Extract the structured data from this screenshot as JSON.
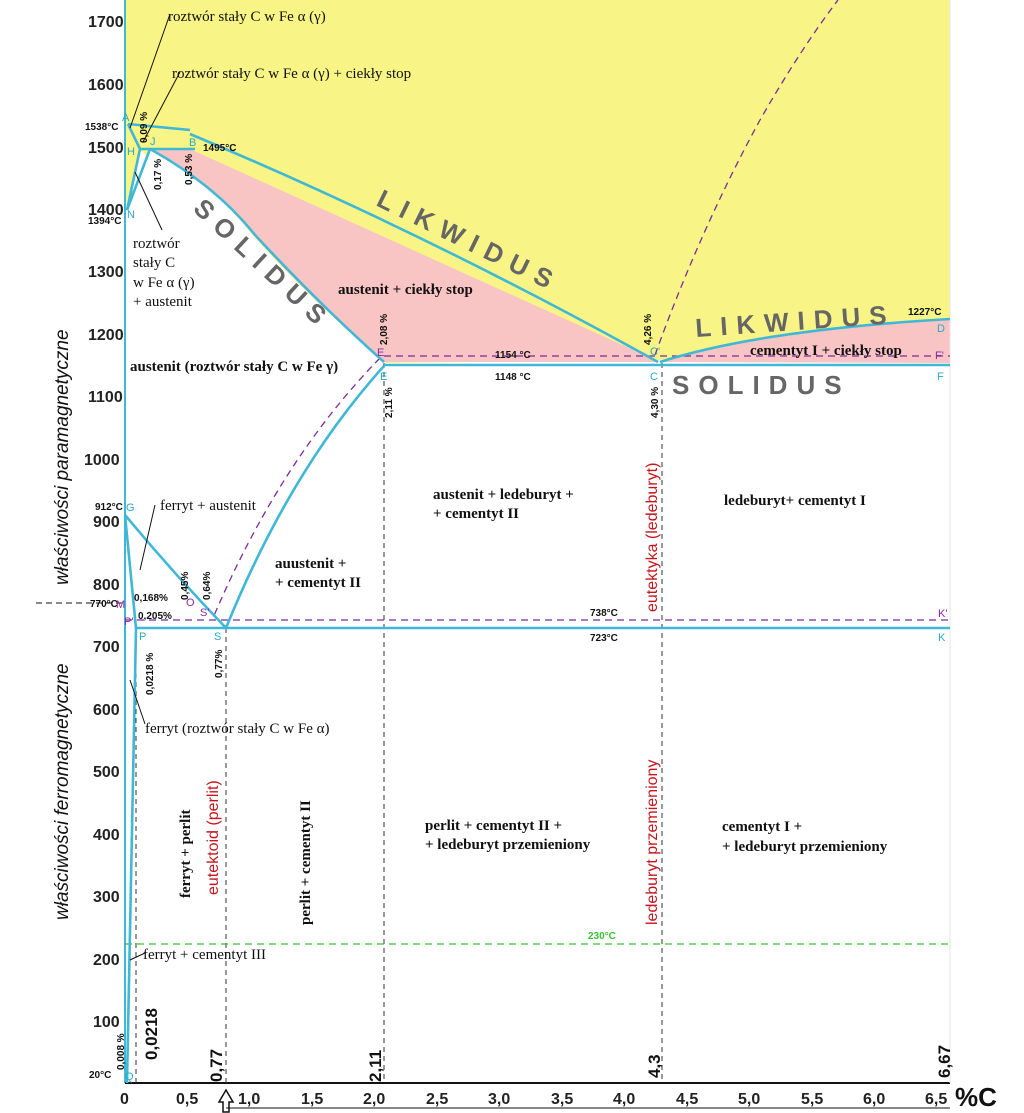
{
  "y_axis": {
    "ticks": [
      "1700",
      "1600",
      "1500",
      "1400",
      "1300",
      "1200",
      "1100",
      "1000",
      "900",
      "800",
      "700",
      "600",
      "500",
      "400",
      "300",
      "200",
      "100",
      "0"
    ],
    "label_para": "właściwości paramagnetyczne",
    "label_ferro": "właściwości ferromagnetyczne",
    "curie": "770°C"
  },
  "x_axis": {
    "ticks": [
      "0",
      "0,5",
      "1,0",
      "1,5",
      "2,0",
      "2,5",
      "3,0",
      "3,5",
      "4,0",
      "4,5",
      "5,0",
      "5,5",
      "6,0",
      "6,5"
    ],
    "unit": "%C",
    "key_values": [
      "0,0218",
      "0,77",
      "2,11",
      "4,3",
      "6,67"
    ]
  },
  "points": {
    "A": "A",
    "H": "H",
    "J": "J",
    "B": "B",
    "N": "N",
    "E": "E",
    "C": "C",
    "C_prime": "C'",
    "D": "D",
    "F": "F",
    "F_prime": "F'",
    "G": "G",
    "M": "M",
    "O": "O",
    "P": "P",
    "P_prime": "P'",
    "S": "S",
    "S_prime": "S'",
    "K": "K",
    "K_prime": "K'",
    "Q": "Q"
  },
  "temperatures": {
    "t1538": "1538°C",
    "t1495": "1495°C",
    "t1394": "1394°C",
    "t1227": "1227°C",
    "t1154": "1154 °C",
    "t1148": "1148 °C",
    "t912": "912°C",
    "t738": "738°C",
    "t723": "723°C",
    "t230": "230°C",
    "t20": "20°C"
  },
  "percents": {
    "p009": "0,09 %",
    "p017": "0,17 %",
    "p053": "0,53 %",
    "p208": "2,08 %",
    "p211": "2,11 %",
    "p426": "4,26 %",
    "p430": "4,30 %",
    "p045": "0,45%",
    "p064": "0,64%",
    "p0168": "0,168%",
    "p0205": "0,205%",
    "p00218": "0,0218 %",
    "p077": "0,77%",
    "p0008": "0,008 %"
  },
  "curve_labels": {
    "liquidus": "LIKWIDUS",
    "solidus": "SOLIDUS"
  },
  "regions": {
    "alpha_gamma": "roztwór stały C w Fe α (γ)",
    "alpha_gamma_liquid": "roztwór stały C w Fe α (γ) + ciekły stop",
    "rs_1": "roztwór",
    "rs_2": "stały C",
    "rs_3": "w Fe α (γ)",
    "rs_4": "+ austenit",
    "austenite_liquid": "austenit + ciekły stop",
    "austenite": "austenit (roztwór stały C w Fe γ)",
    "cementite_liquid": "cementyt I + ciekły stop",
    "aus_led_1": "austenit + ledeburyt +",
    "aus_led_2": "+ cementyt II",
    "led_cem": "ledeburyt+ cementyt I",
    "ferrite_austenite": "ferryt + austenit",
    "aus_cem_1": "auustenit +",
    "aus_cem_2": "+ cementyt II",
    "ferrite": "ferryt (roztwór stały C w Fe α)",
    "ferrite_perlite": "ferryt + perlit",
    "perlite_cem": "perlit + cementyt II",
    "perl_led_1": "perlit + cementyt II +",
    "perl_led_2": "+ ledeburyt przemieniony",
    "cem_led_1": "cementyt I +",
    "cem_led_2": "+ ledeburyt przemieniony",
    "ferrite_cem3": "ferryt + cementyt III",
    "eutektoid": "eutektoid (perlit)",
    "eutektyka": "eutektyka (ledeburyt)",
    "led_transformed": "ledeburyt  przemieniony"
  },
  "colors": {
    "liquid": "#f8f586",
    "two_phase": "#f9c4c4",
    "line": "#3fb8d6",
    "dashed_purple": "#7a2aa0",
    "dashed_green": "#35c135"
  }
}
